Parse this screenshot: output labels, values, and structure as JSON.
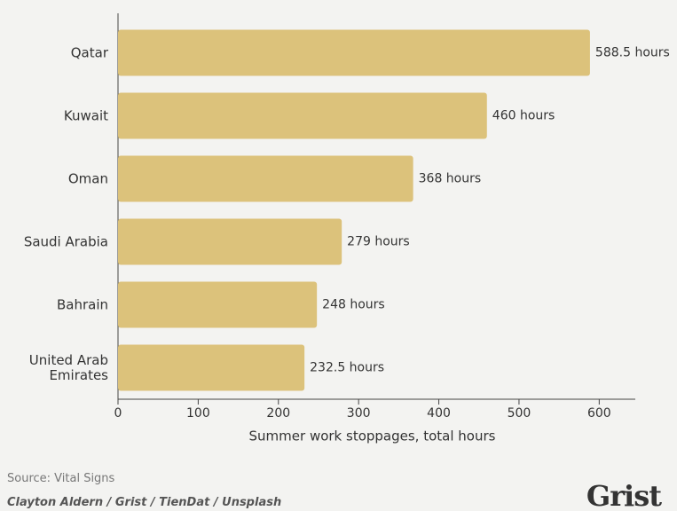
{
  "chart_data": {
    "type": "bar",
    "orientation": "horizontal",
    "categories": [
      "Qatar",
      "Kuwait",
      "Oman",
      "Saudi Arabia",
      "Bahrain",
      "United Arab Emirates"
    ],
    "values": [
      588.5,
      460,
      368,
      279,
      248,
      232.5
    ],
    "value_labels": [
      "588.5 hours",
      "460 hours",
      "368 hours",
      "279 hours",
      "248 hours",
      "232.5 hours"
    ],
    "color": "#dcc27b",
    "x_label": "Summer work stoppages, total hours",
    "xlim": [
      0,
      645
    ],
    "xticks": [
      0,
      100,
      200,
      300,
      400,
      500,
      600
    ]
  },
  "footer": {
    "source": "Source: Vital Signs",
    "credit": "Clayton Aldern / Grist / TienDat / Unsplash",
    "logo": "Grist"
  }
}
